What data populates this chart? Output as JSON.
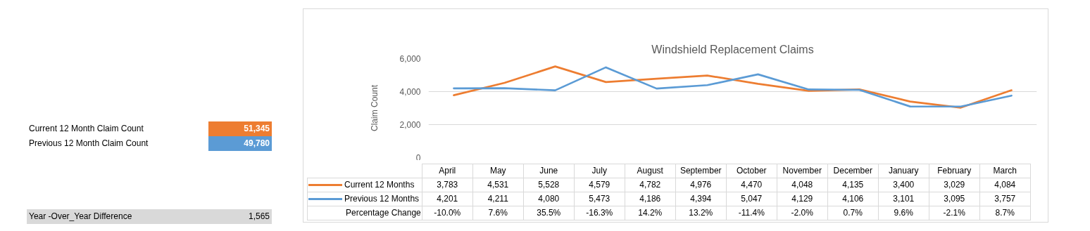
{
  "chart_data": {
    "type": "line",
    "title": "Windshield Replacement Claims",
    "ylabel": "Claim Count",
    "categories": [
      "April",
      "May",
      "June",
      "July",
      "August",
      "September",
      "October",
      "November",
      "December",
      "January",
      "February",
      "March"
    ],
    "series": [
      {
        "name": "Current 12 Months",
        "color": "#ed7d31",
        "values": [
          3783,
          4531,
          5528,
          4579,
          4782,
          4976,
          4470,
          4048,
          4135,
          3400,
          3029,
          4084
        ],
        "value_labels": [
          "3,783",
          "4,531",
          "5,528",
          "4,579",
          "4,782",
          "4,976",
          "4,470",
          "4,048",
          "4,135",
          "3,400",
          "3,029",
          "4,084"
        ]
      },
      {
        "name": "Previous 12 Months",
        "color": "#5b9bd5",
        "values": [
          4201,
          4211,
          4080,
          5473,
          4186,
          4394,
          5047,
          4129,
          4106,
          3101,
          3095,
          3757
        ],
        "value_labels": [
          "4,201",
          "4,211",
          "4,080",
          "5,473",
          "4,186",
          "4,394",
          "5,047",
          "4,129",
          "4,106",
          "3,101",
          "3,095",
          "3,757"
        ]
      }
    ],
    "ylim": [
      0,
      6000
    ],
    "yticks": [
      {
        "value": 0,
        "label": "0"
      },
      {
        "value": 2000,
        "label": "2,000"
      },
      {
        "value": 4000,
        "label": "4,000"
      },
      {
        "value": 6000,
        "label": "6,000"
      }
    ],
    "grid": "y",
    "legend": "bottom left",
    "marker": "none",
    "line_style": "solid",
    "annotations": [
      "Current 12 Month Claim Count",
      "51,345",
      "Previous 12 Month Claim Count",
      "49,780",
      "Year -Over_Year Difference",
      "1,565",
      "Percentage Change",
      "-10.0%",
      "7.6%",
      "35.5%",
      "-16.3%",
      "14.2%",
      "13.2%",
      "-11.4%",
      "-2.0%",
      "0.7%",
      "9.6%",
      "-2.1%",
      "8.7%"
    ]
  }
}
